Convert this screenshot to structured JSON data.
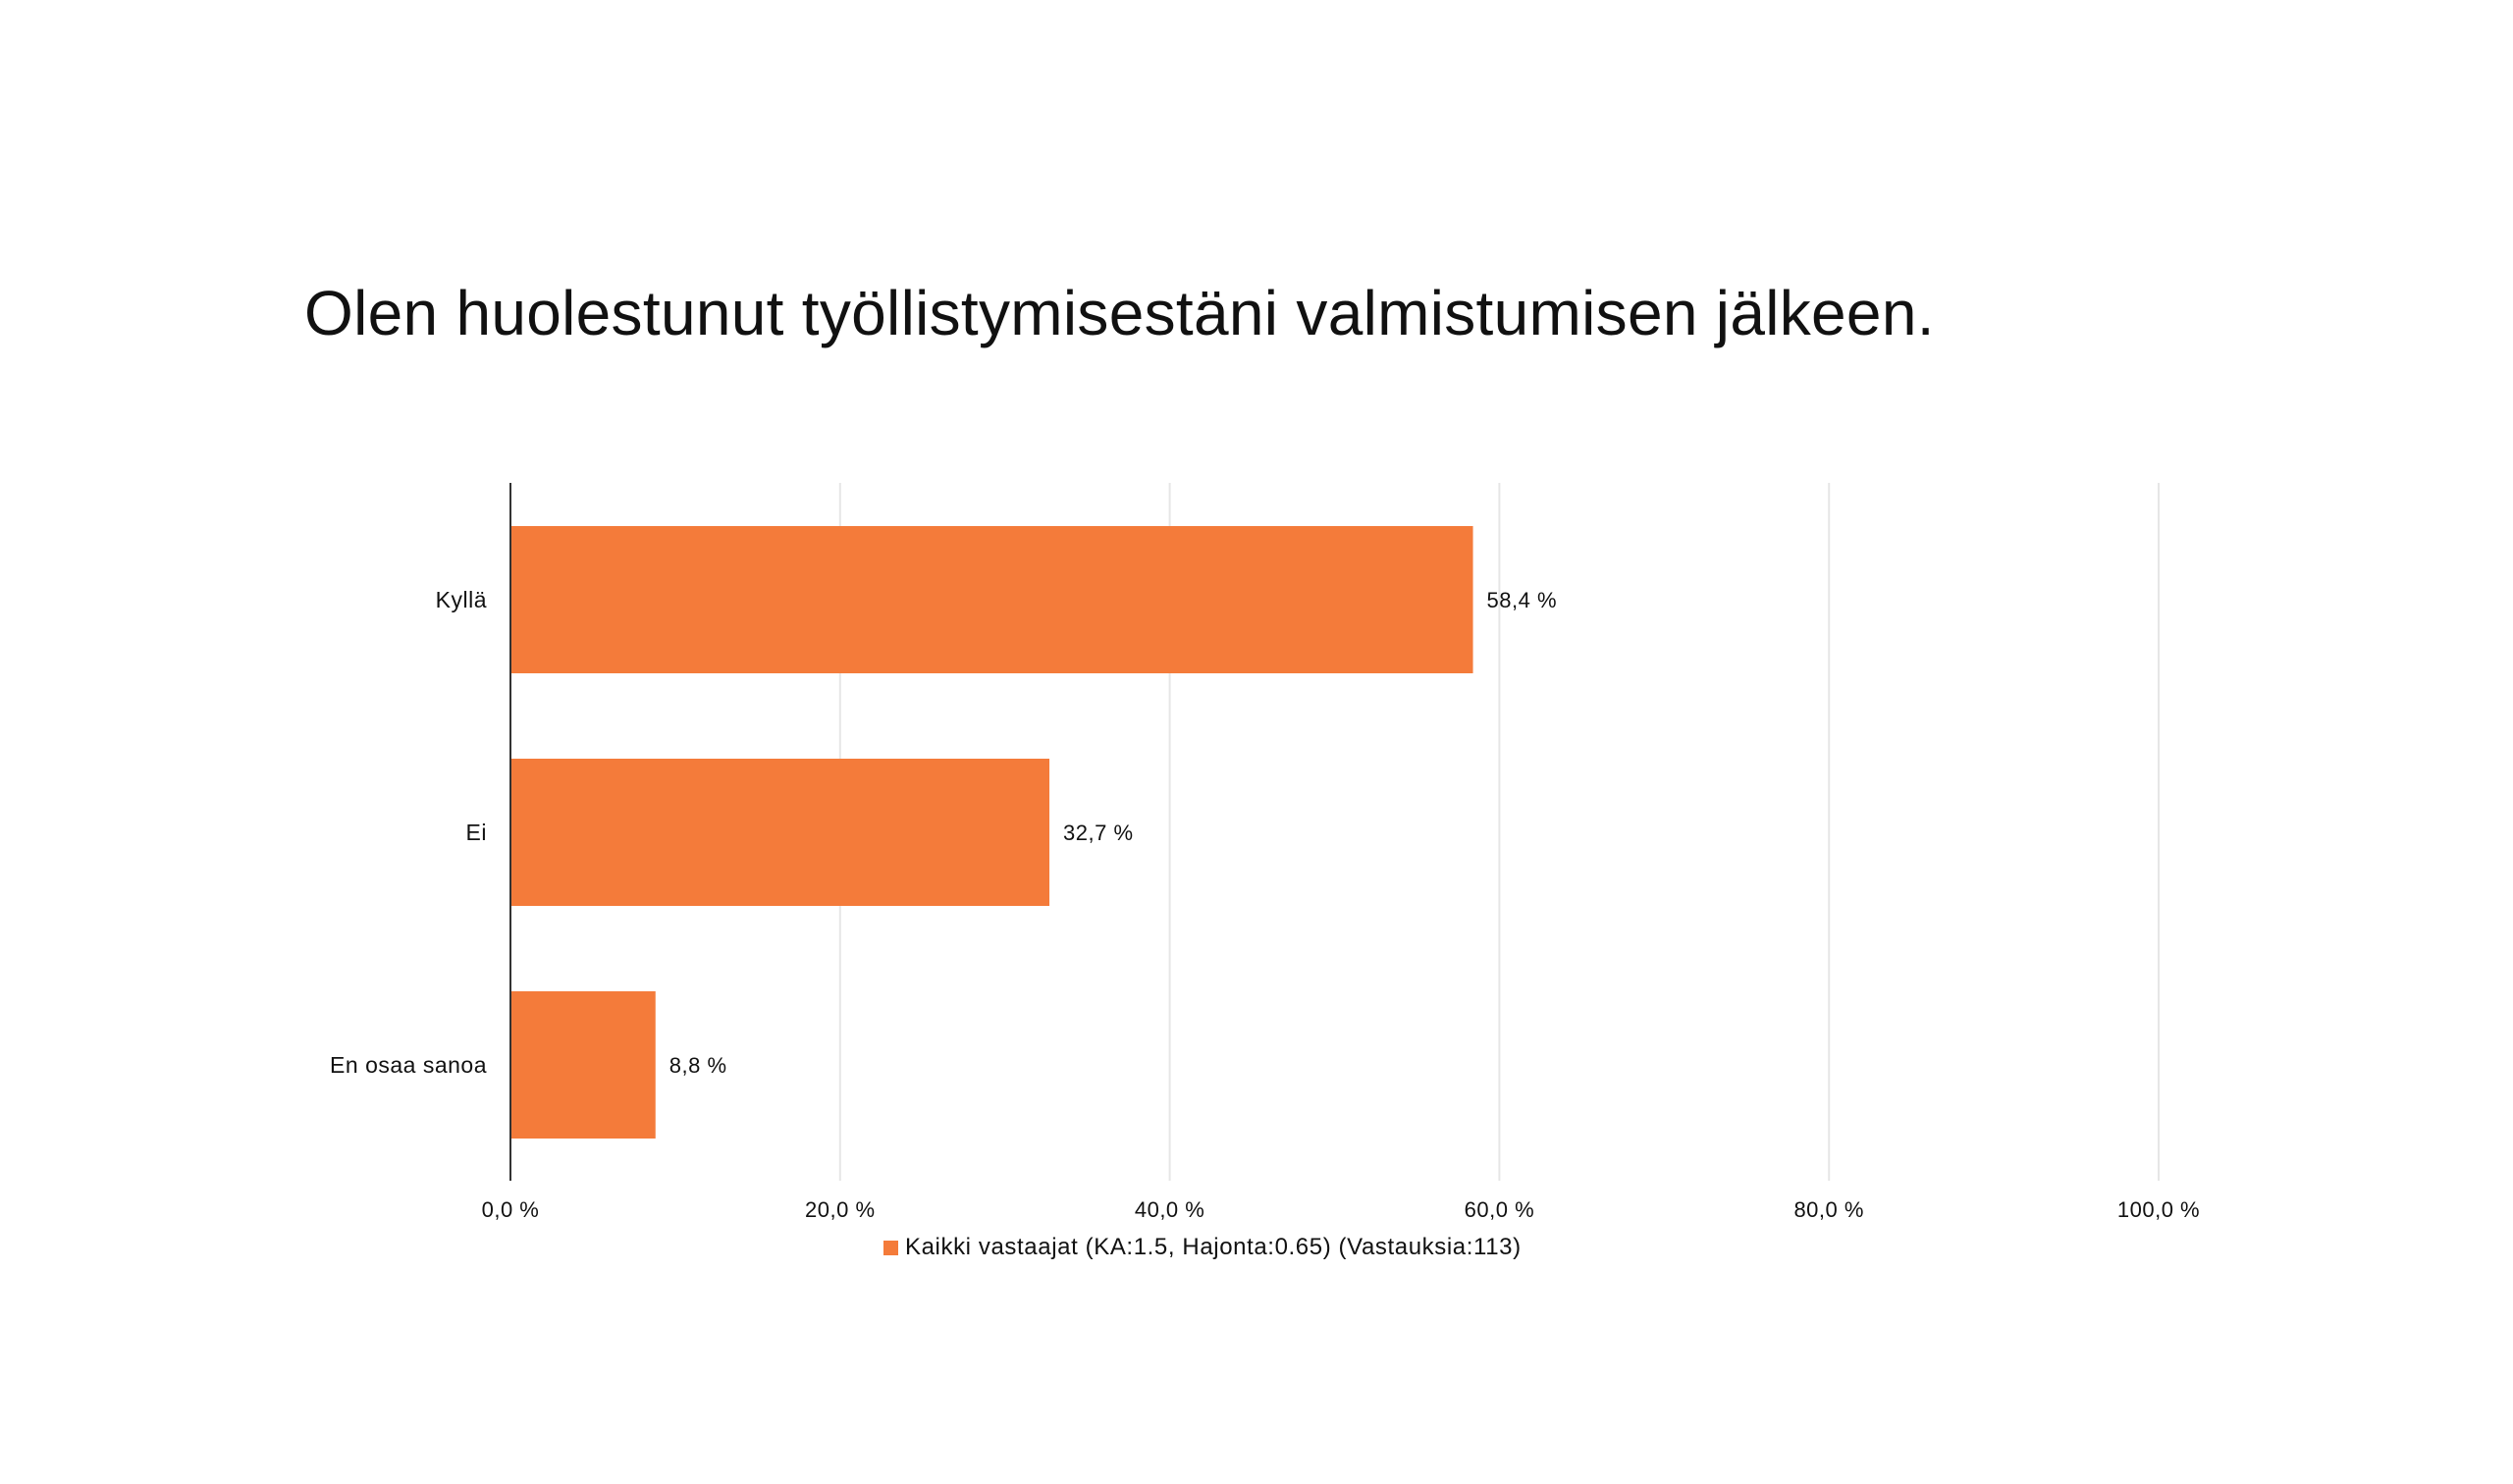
{
  "chart_data": {
    "type": "bar",
    "orientation": "horizontal",
    "title": "Olen huolestunut työllistymisestäni valmistumisen jälkeen.",
    "categories": [
      "Kyllä",
      "Ei",
      "En osaa sanoa"
    ],
    "series": [
      {
        "name": "Kaikki vastaajat (KA:1.5, Hajonta:0.65) (Vastauksia:113)",
        "values": [
          58.4,
          32.7,
          8.8
        ],
        "data_labels": [
          "58,4 %",
          "32,7 %",
          "8,8 %"
        ],
        "color": "#F47B3A"
      }
    ],
    "xlim": [
      0,
      100
    ],
    "x_ticks": [
      0,
      20,
      40,
      60,
      80,
      100
    ],
    "x_tick_labels": [
      "0,0 %",
      "20,0 %",
      "40,0 %",
      "60,0 %",
      "80,0 %",
      "100,0 %"
    ],
    "grid": true,
    "legend_position": "bottom"
  }
}
